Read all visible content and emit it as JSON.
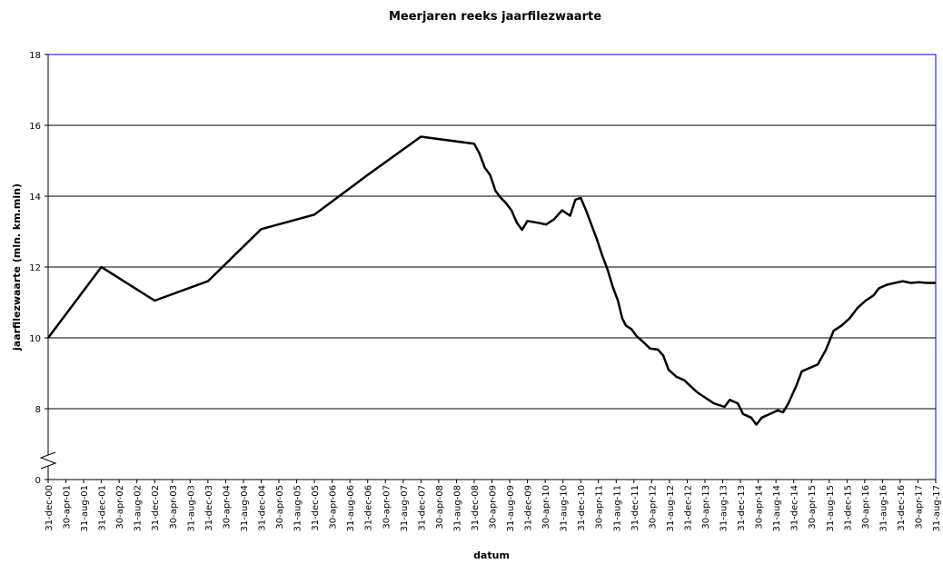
{
  "chart_data": {
    "type": "line",
    "title": "Meerjaren reeks jaarfilezwaarte",
    "x_label": "datum",
    "y_label": "jaarfilezwaarte (mln. km.min)",
    "color": "#000000",
    "grid": true,
    "y_break": [
      0,
      6
    ],
    "ylim": [
      0,
      18
    ],
    "yticks": [
      0,
      8,
      10,
      12,
      14,
      16,
      18
    ],
    "xlim": [
      2001,
      2017.6667
    ],
    "xticks": [
      {
        "value": 2001,
        "label": "31-dec-00"
      },
      {
        "value": 2001.3333,
        "label": "30-apr-01"
      },
      {
        "value": 2001.6667,
        "label": "31-aug-01"
      },
      {
        "value": 2002,
        "label": "31-dec-01"
      },
      {
        "value": 2002.3333,
        "label": "30-apr-02"
      },
      {
        "value": 2002.6667,
        "label": "31-aug-02"
      },
      {
        "value": 2003,
        "label": "31-dec-02"
      },
      {
        "value": 2003.3333,
        "label": "30-apr-03"
      },
      {
        "value": 2003.6667,
        "label": "31-aug-03"
      },
      {
        "value": 2004,
        "label": "31-dec-03"
      },
      {
        "value": 2004.3333,
        "label": "30-apr-04"
      },
      {
        "value": 2004.6667,
        "label": "31-aug-04"
      },
      {
        "value": 2005,
        "label": "31-dec-04"
      },
      {
        "value": 2005.3333,
        "label": "30-apr-05"
      },
      {
        "value": 2005.6667,
        "label": "31-aug-05"
      },
      {
        "value": 2006,
        "label": "31-dec-05"
      },
      {
        "value": 2006.3333,
        "label": "30-apr-06"
      },
      {
        "value": 2006.6667,
        "label": "31-aug-06"
      },
      {
        "value": 2007,
        "label": "31-dec-06"
      },
      {
        "value": 2007.3333,
        "label": "30-apr-07"
      },
      {
        "value": 2007.6667,
        "label": "31-aug-07"
      },
      {
        "value": 2008,
        "label": "31-dec-07"
      },
      {
        "value": 2008.3333,
        "label": "30-apr-08"
      },
      {
        "value": 2008.6667,
        "label": "31-aug-08"
      },
      {
        "value": 2009,
        "label": "31-dec-08"
      },
      {
        "value": 2009.3333,
        "label": "30-apr-09"
      },
      {
        "value": 2009.6667,
        "label": "31-aug-09"
      },
      {
        "value": 2010,
        "label": "31-dec-09"
      },
      {
        "value": 2010.3333,
        "label": "30-apr-10"
      },
      {
        "value": 2010.6667,
        "label": "31-aug-10"
      },
      {
        "value": 2011,
        "label": "31-dec-10"
      },
      {
        "value": 2011.3333,
        "label": "30-apr-11"
      },
      {
        "value": 2011.6667,
        "label": "31-aug-11"
      },
      {
        "value": 2012,
        "label": "31-dec-11"
      },
      {
        "value": 2012.3333,
        "label": "30-apr-12"
      },
      {
        "value": 2012.6667,
        "label": "31-aug-12"
      },
      {
        "value": 2013,
        "label": "31-dec-12"
      },
      {
        "value": 2013.3333,
        "label": "30-apr-13"
      },
      {
        "value": 2013.6667,
        "label": "31-aug-13"
      },
      {
        "value": 2014,
        "label": "31-dec-13"
      },
      {
        "value": 2014.3333,
        "label": "30-apr-14"
      },
      {
        "value": 2014.6667,
        "label": "31-aug-14"
      },
      {
        "value": 2015,
        "label": "31-dec-14"
      },
      {
        "value": 2015.3333,
        "label": "30-apr-15"
      },
      {
        "value": 2015.6667,
        "label": "31-aug-15"
      },
      {
        "value": 2016,
        "label": "31-dec-15"
      },
      {
        "value": 2016.3333,
        "label": "30-apr-16"
      },
      {
        "value": 2016.6667,
        "label": "31-aug-16"
      },
      {
        "value": 2017,
        "label": "31-dec-16"
      },
      {
        "value": 2017.3333,
        "label": "30-apr-17"
      },
      {
        "value": 2017.6667,
        "label": "31-aug-17"
      }
    ],
    "x": [
      2001,
      2002,
      2003,
      2004,
      2005,
      2006,
      2007,
      2008,
      2009,
      2009.1,
      2009.2,
      2009.3,
      2009.4,
      2009.5,
      2009.6,
      2009.7,
      2009.8,
      2009.9,
      2010,
      2010.2,
      2010.35,
      2010.5,
      2010.65,
      2010.8,
      2010.9,
      2011,
      2011.1,
      2011.2,
      2011.3,
      2011.4,
      2011.5,
      2011.6,
      2011.7,
      2011.78,
      2011.85,
      2011.95,
      2012.05,
      2012.2,
      2012.3,
      2012.45,
      2012.55,
      2012.65,
      2012.8,
      2012.95,
      2013.05,
      2013.2,
      2013.35,
      2013.5,
      2013.7,
      2013.8,
      2013.95,
      2014.05,
      2014.2,
      2014.3,
      2014.4,
      2014.55,
      2014.7,
      2014.8,
      2014.9,
      2015.05,
      2015.15,
      2015.3,
      2015.45,
      2015.6,
      2015.75,
      2015.9,
      2016.05,
      2016.2,
      2016.35,
      2016.5,
      2016.6,
      2016.75,
      2016.9,
      2017.05,
      2017.2,
      2017.35,
      2017.5,
      2017.6667
    ],
    "values": [
      10.0,
      12.0,
      11.05,
      11.6,
      13.07,
      13.48,
      14.6,
      15.68,
      15.48,
      15.2,
      14.8,
      14.6,
      14.15,
      13.95,
      13.8,
      13.6,
      13.25,
      13.05,
      13.3,
      13.25,
      13.2,
      13.35,
      13.6,
      13.45,
      13.9,
      13.95,
      13.6,
      13.2,
      12.8,
      12.35,
      11.95,
      11.45,
      11.05,
      10.55,
      10.35,
      10.25,
      10.05,
      9.85,
      9.7,
      9.67,
      9.5,
      9.1,
      8.9,
      8.8,
      8.65,
      8.45,
      8.3,
      8.15,
      8.05,
      8.25,
      8.15,
      7.85,
      7.75,
      7.55,
      7.75,
      7.85,
      7.95,
      7.9,
      8.15,
      8.65,
      9.05,
      9.15,
      9.25,
      9.65,
      10.2,
      10.35,
      10.55,
      10.85,
      11.05,
      11.2,
      11.4,
      11.5,
      11.55,
      11.6,
      11.55,
      11.57,
      11.55,
      11.55
    ]
  }
}
